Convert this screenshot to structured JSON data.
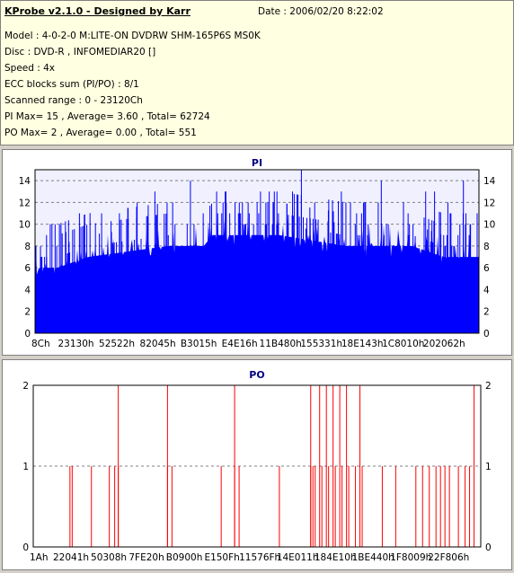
{
  "info": {
    "title": "KProbe v2.1.0 - Designed by Karr",
    "date": "Date : 2006/02/20 8:22:02",
    "lines": [
      "Model : 4-0-2-0 M:LITE-ON DVDRW SHM-165P6S MS0K",
      "Disc : DVD-R , INFOMEDIAR20 []",
      "Speed : 4x",
      "ECC blocks sum (PI/PO) : 8/1",
      "Scanned range : 0 - 23120Ch",
      "PI Max= 15 , Average= 3.60 , Total= 62724",
      "PO Max= 2 , Average= 0.00 , Total= 551"
    ]
  },
  "chart_data": [
    {
      "type": "bar",
      "title": "PI",
      "color": "#0000ff",
      "ylim": [
        0,
        15
      ],
      "yticks": [
        0,
        2,
        4,
        6,
        8,
        10,
        12,
        14
      ],
      "xtick_labels": [
        "8Ch",
        "23130h",
        "52522h",
        "82045h",
        "B3015h",
        "E4E16h",
        "11B480h",
        "155331h",
        "18E143h",
        "1C8010h",
        "202062h"
      ],
      "grid": true,
      "base_profile": [
        {
          "x": 0.0,
          "y": 6
        },
        {
          "x": 0.05,
          "y": 6
        },
        {
          "x": 0.12,
          "y": 7
        },
        {
          "x": 0.3,
          "y": 8
        },
        {
          "x": 0.38,
          "y": 8
        },
        {
          "x": 0.4,
          "y": 9
        },
        {
          "x": 0.55,
          "y": 9
        },
        {
          "x": 0.7,
          "y": 8
        },
        {
          "x": 0.85,
          "y": 8
        },
        {
          "x": 0.92,
          "y": 7
        },
        {
          "x": 1.0,
          "y": 7
        }
      ],
      "peaks": [
        {
          "x": 0.35,
          "y": 14
        },
        {
          "x": 0.27,
          "y": 13
        },
        {
          "x": 0.43,
          "y": 13
        },
        {
          "x": 0.58,
          "y": 13
        },
        {
          "x": 0.78,
          "y": 14
        },
        {
          "x": 0.69,
          "y": 13
        },
        {
          "x": 0.88,
          "y": 13
        },
        {
          "x": 0.9,
          "y": 13
        },
        {
          "x": 0.965,
          "y": 14
        },
        {
          "x": 0.23,
          "y": 12
        },
        {
          "x": 0.48,
          "y": 12
        },
        {
          "x": 0.52,
          "y": 12
        },
        {
          "x": 0.63,
          "y": 12
        },
        {
          "x": 0.74,
          "y": 12
        },
        {
          "x": 0.83,
          "y": 12
        },
        {
          "x": 0.93,
          "y": 12
        },
        {
          "x": 0.1,
          "y": 11
        },
        {
          "x": 0.15,
          "y": 11
        },
        {
          "x": 0.19,
          "y": 11
        },
        {
          "x": 0.98,
          "y": 10
        },
        {
          "x": 0.6,
          "y": 15
        },
        {
          "x": 0.31,
          "y": 12
        },
        {
          "x": 0.055,
          "y": 10
        }
      ]
    },
    {
      "type": "bar",
      "title": "PO",
      "color": "#ff0000",
      "ylim": [
        0,
        2
      ],
      "yticks": [
        0,
        1,
        2
      ],
      "xtick_labels": [
        "1Ah",
        "22041h",
        "50308h",
        "7FE20h",
        "B0900h",
        "E150Fh",
        "11576Fh",
        "14E011h",
        "184E10h",
        "1BE440h",
        "1F8009h",
        "22F806h"
      ],
      "grid": true,
      "ones": [
        0.082,
        0.087,
        0.13,
        0.17,
        0.182,
        0.19,
        0.3,
        0.31,
        0.42,
        0.45,
        0.46,
        0.55,
        0.62,
        0.625,
        0.63,
        0.645,
        0.66,
        0.675,
        0.69,
        0.705,
        0.72,
        0.735,
        0.78,
        0.81,
        0.855,
        0.87,
        0.885,
        0.9,
        0.91,
        0.92,
        0.93,
        0.95,
        0.965,
        0.975
      ],
      "twos": [
        0.19,
        0.3,
        0.45,
        0.62,
        0.64,
        0.655,
        0.67,
        0.685,
        0.7,
        0.73,
        0.985
      ]
    }
  ]
}
